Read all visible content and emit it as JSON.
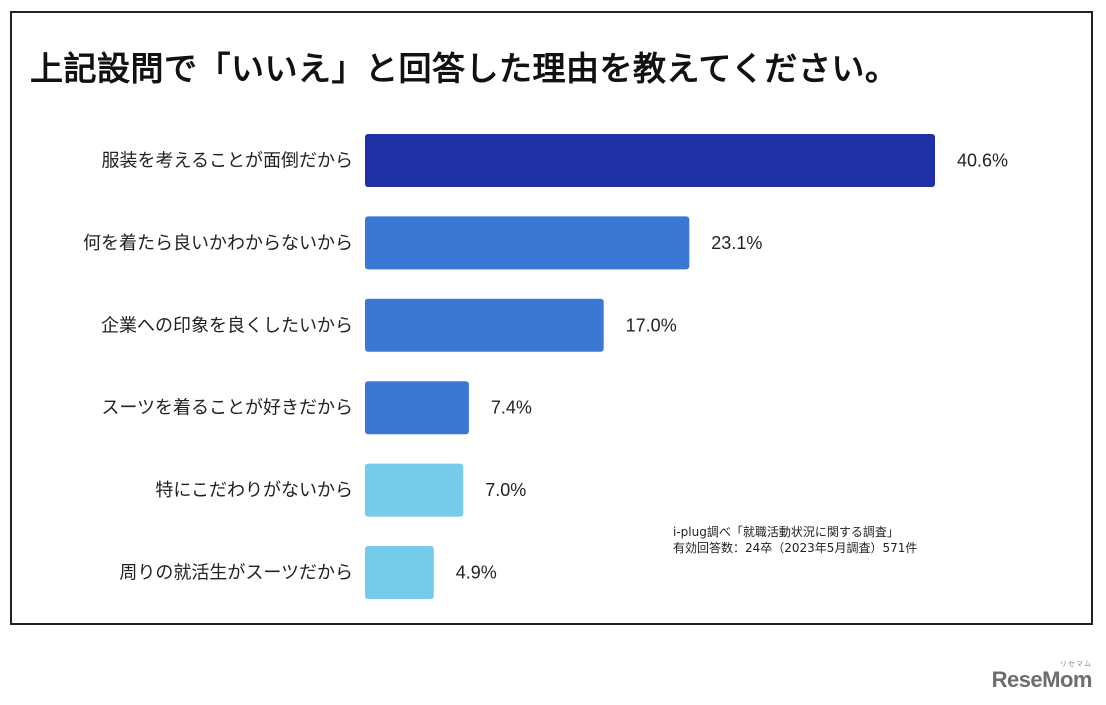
{
  "chart_data": {
    "type": "bar",
    "orientation": "horizontal",
    "title": "上記設問で「いいえ」と回答した理由を教えてください。",
    "categories": [
      "服装を考えることが面倒だから",
      "何を着たら良いかわからないから",
      "企業への印象を良くしたいから",
      "スーツを着ることが好きだから",
      "特にこだわりがないから",
      "周りの就活生がスーツだから"
    ],
    "values": [
      40.6,
      23.1,
      17.0,
      7.4,
      7.0,
      4.9
    ],
    "value_labels": [
      "40.6%",
      "23.1%",
      "17.0%",
      "7.4%",
      "7.0%",
      "4.9%"
    ],
    "bar_colors": [
      "#1f2fa6",
      "#3a78d4",
      "#3a78d4",
      "#3a78d4",
      "#75cbe9",
      "#75cbe9"
    ],
    "xlim": [
      0,
      44
    ],
    "grid": false,
    "legend": "none"
  },
  "source_note": [
    "i-plug調べ「就職活動状況に関する調査」",
    "有効回答数：24卒（2023年5月調査）571件"
  ],
  "logo": {
    "text": "ReseMom",
    "mark": "リセマム"
  }
}
